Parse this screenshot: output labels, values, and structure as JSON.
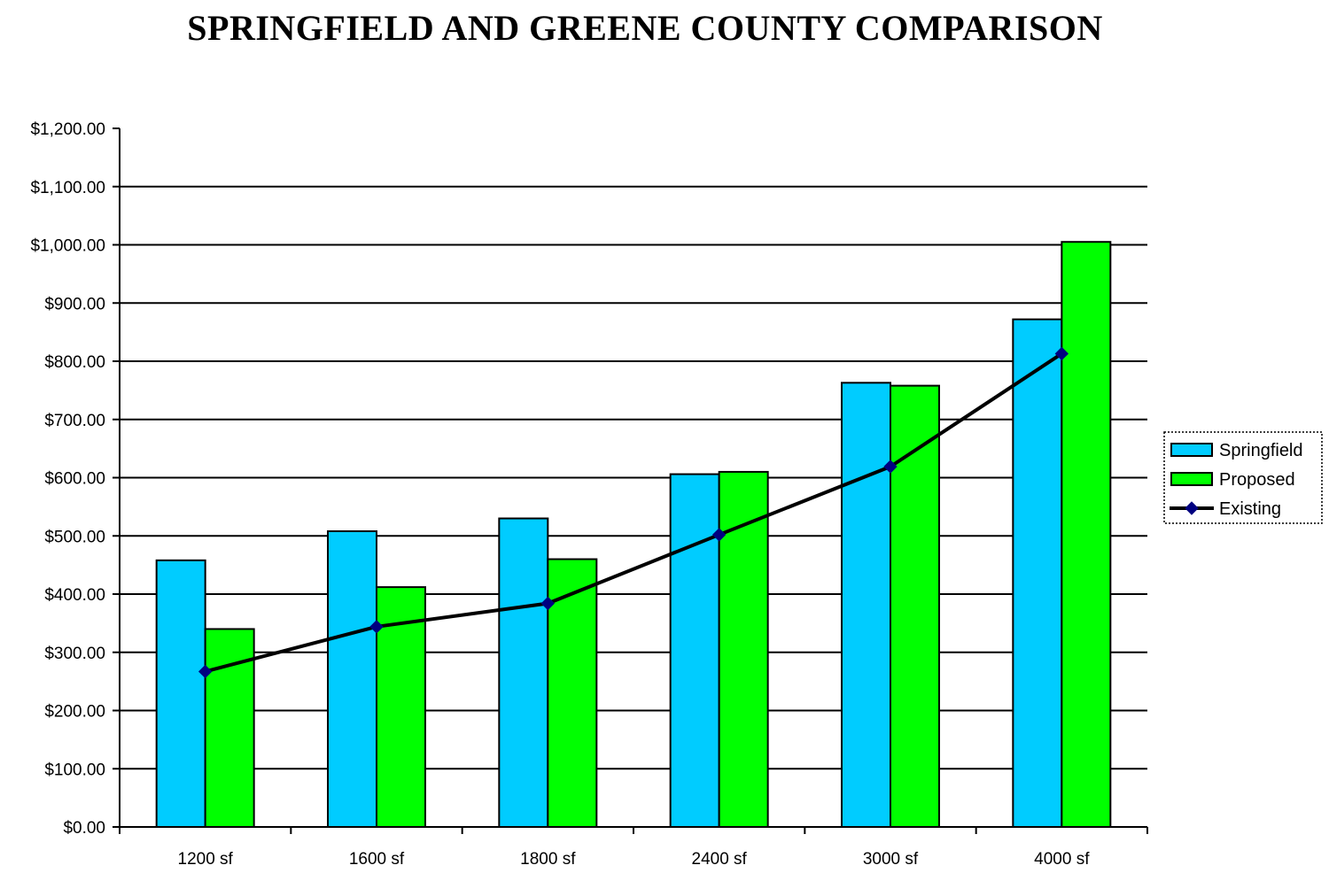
{
  "chart_data": {
    "type": "bar",
    "title": "SPRINGFIELD AND GREENE COUNTY COMPARISON",
    "categories": [
      "1200 sf",
      "1600 sf",
      "1800 sf",
      "2400 sf",
      "3000 sf",
      "4000 sf"
    ],
    "ylim": [
      0,
      1200
    ],
    "ystep": 100,
    "ytick_labels": [
      "$0.00",
      "$100.00",
      "$200.00",
      "$300.00",
      "$400.00",
      "$500.00",
      "$600.00",
      "$700.00",
      "$800.00",
      "$900.00",
      "$1,000.00",
      "$1,100.00",
      "$1,200.00"
    ],
    "grid": true,
    "legend_position": "right",
    "series": [
      {
        "name": "Springfield",
        "type": "bar",
        "color": "#00ccff",
        "values": [
          458,
          508,
          530,
          606,
          763,
          872
        ]
      },
      {
        "name": "Proposed",
        "type": "bar",
        "color": "#00ff00",
        "values": [
          340,
          412,
          460,
          610,
          758,
          1005
        ]
      },
      {
        "name": "Existing",
        "type": "line",
        "color": "#000000",
        "marker_color": "#000080",
        "values": [
          267,
          344,
          384,
          502,
          619,
          813
        ]
      }
    ]
  }
}
